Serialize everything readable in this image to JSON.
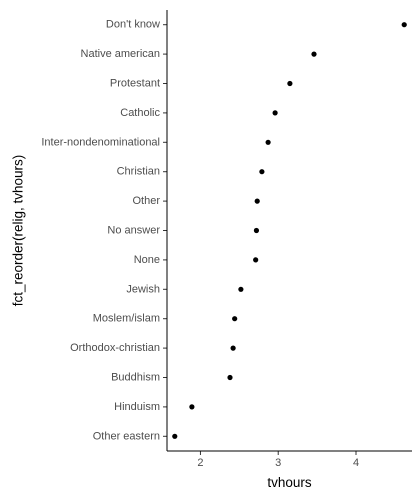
{
  "chart_data": {
    "type": "scatter",
    "xlabel": "tvhours",
    "ylabel": "fct_reorder(relig, tvhours)",
    "xlim": [
      1.57,
      4.72
    ],
    "xticks": [
      2,
      3,
      4
    ],
    "grid": false,
    "legend": "none",
    "point_color": "#000000",
    "axis_color": "#000000",
    "categories": [
      "Other eastern",
      "Hinduism",
      "Buddhism",
      "Orthodox-christian",
      "Moslem/islam",
      "Jewish",
      "None",
      "No answer",
      "Other",
      "Christian",
      "Inter-nondenominational",
      "Catholic",
      "Protestant",
      "Native american",
      "Don't know"
    ],
    "values": [
      1.67,
      1.89,
      2.38,
      2.42,
      2.44,
      2.52,
      2.71,
      2.72,
      2.73,
      2.79,
      2.87,
      2.96,
      3.15,
      3.46,
      4.62
    ]
  }
}
